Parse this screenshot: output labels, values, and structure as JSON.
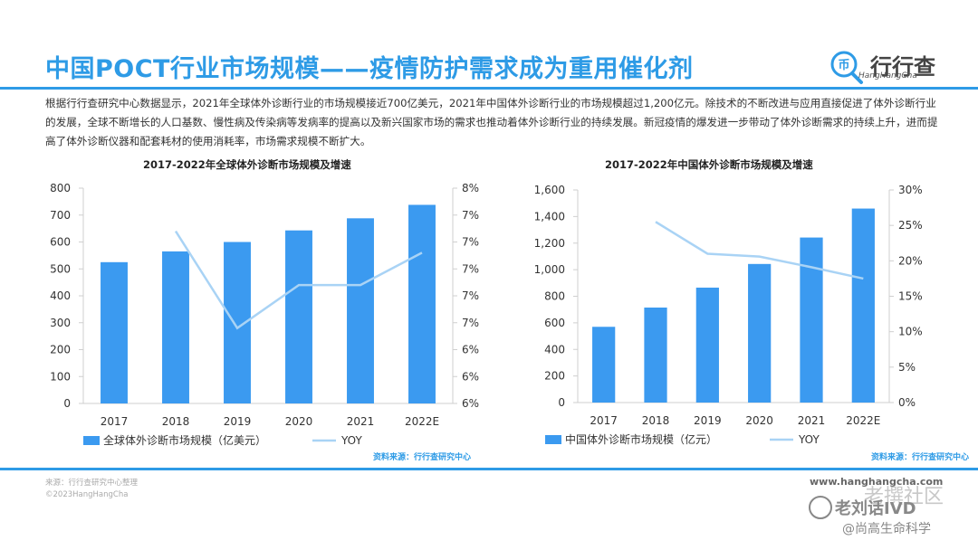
{
  "title": "中国POCT行业市场规模——疫情防护需求成为重用催化剂",
  "logo": {
    "name": "行行查",
    "sub": "HangHangCha"
  },
  "intro": "根据行行查研究中心数据显示，2021年全球体外诊断行业的市场规模接近700亿美元，2021年中国体外诊断行业的市场规模超过1,200亿元。除技术的不断改进与应用直接促进了体外诊断行业的发展，全球不断增长的人口基数、慢性病及传染病等发病率的提高以及新兴国家市场的需求也推动着体外诊断行业的持续发展。新冠疫情的爆发进一步带动了体外诊断需求的持续上升，进而提高了体外诊断仪器和配套耗材的使用消耗率，市场需求规模不断扩大。",
  "colors": {
    "bar": "#3b9af0",
    "line": "#a9d3f5",
    "accent": "#2e9be6"
  },
  "chart_data": [
    {
      "type": "bar",
      "title": "2017-2022年全球体外诊断市场规模及增速",
      "categories": [
        "2017",
        "2018",
        "2019",
        "2020",
        "2021",
        "2022E"
      ],
      "series": [
        {
          "name": "全球体外诊断市场规模（亿美元）",
          "type": "bar",
          "axis": "left",
          "values": [
            525,
            565,
            600,
            643,
            688,
            738
          ]
        },
        {
          "name": "YOY",
          "type": "line",
          "axis": "right",
          "values": [
            null,
            7.6,
            6.7,
            7.1,
            7.1,
            7.4
          ]
        }
      ],
      "left_axis": {
        "ylim": [
          0,
          800
        ],
        "ticks": [
          "0",
          "100",
          "200",
          "300",
          "400",
          "500",
          "600",
          "700",
          "800"
        ]
      },
      "right_axis": {
        "ylim": [
          6,
          8
        ],
        "ticks": [
          "6%",
          "6%",
          "6%",
          "7%",
          "7%",
          "7%",
          "7%",
          "7%",
          "8%"
        ]
      },
      "source": "资料来源：行行查研究中心"
    },
    {
      "type": "bar",
      "title": "2017-2022年中国体外诊断市场规模及增速",
      "categories": [
        "2017",
        "2018",
        "2019",
        "2020",
        "2021",
        "2022E"
      ],
      "series": [
        {
          "name": "中国体外诊断市场规模（亿元）",
          "type": "bar",
          "axis": "left",
          "values": [
            570,
            715,
            865,
            1043,
            1242,
            1460
          ]
        },
        {
          "name": "YOY",
          "type": "line",
          "axis": "right",
          "values": [
            null,
            25.5,
            21.0,
            20.6,
            19.1,
            17.5
          ]
        }
      ],
      "left_axis": {
        "ylim": [
          0,
          1600
        ],
        "ticks": [
          "0",
          "200",
          "400",
          "600",
          "800",
          "1,000",
          "1,200",
          "1,400",
          "1,600"
        ]
      },
      "right_axis": {
        "ylim": [
          0,
          30
        ],
        "ticks": [
          "0%",
          "5%",
          "10%",
          "15%",
          "20%",
          "25%",
          "30%"
        ]
      },
      "source": "资料来源：行行查研究中心"
    }
  ],
  "footer": {
    "source": "来源：行行查研究中心整理",
    "copyright": "©2023HangHangCha",
    "url": "www.hanghangcha.com"
  },
  "watermark": {
    "line1": "老刘话IVD",
    "line2": "@尚高生命科学",
    "overlay": "老撰社区"
  }
}
